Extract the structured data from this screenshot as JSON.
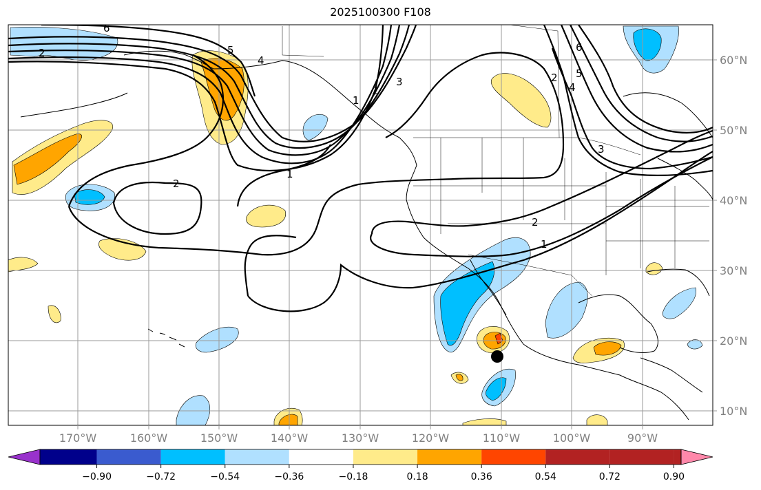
{
  "title": "2025100300 F108",
  "lon_labels": [
    "170°W",
    "160°W",
    "150°W",
    "140°W",
    "130°W",
    "120°W",
    "110°W",
    "100°W",
    "90°W"
  ],
  "lat_labels": [
    "60°N",
    "50°N",
    "40°N",
    "30°N",
    "20°N",
    "10°N"
  ],
  "contour_labels": [
    "2",
    "6",
    "5",
    "4",
    "3",
    "2",
    "1",
    "6",
    "5",
    "4",
    "3",
    "2",
    "1",
    "2",
    "2",
    "1"
  ],
  "colorbar": {
    "colors": [
      "#9932cc",
      "#00008b",
      "#3a5bcf",
      "#00bfff",
      "#b0e0ff",
      "#ffffff",
      "#ffeb8a",
      "#ffa500",
      "#ff4500",
      "#b22222",
      "#ff88aa"
    ],
    "ticks": [
      "−0.90",
      "−0.72",
      "−0.54",
      "−0.36",
      "−0.18",
      "0.18",
      "0.36",
      "0.54",
      "0.72",
      "0.90"
    ]
  }
}
